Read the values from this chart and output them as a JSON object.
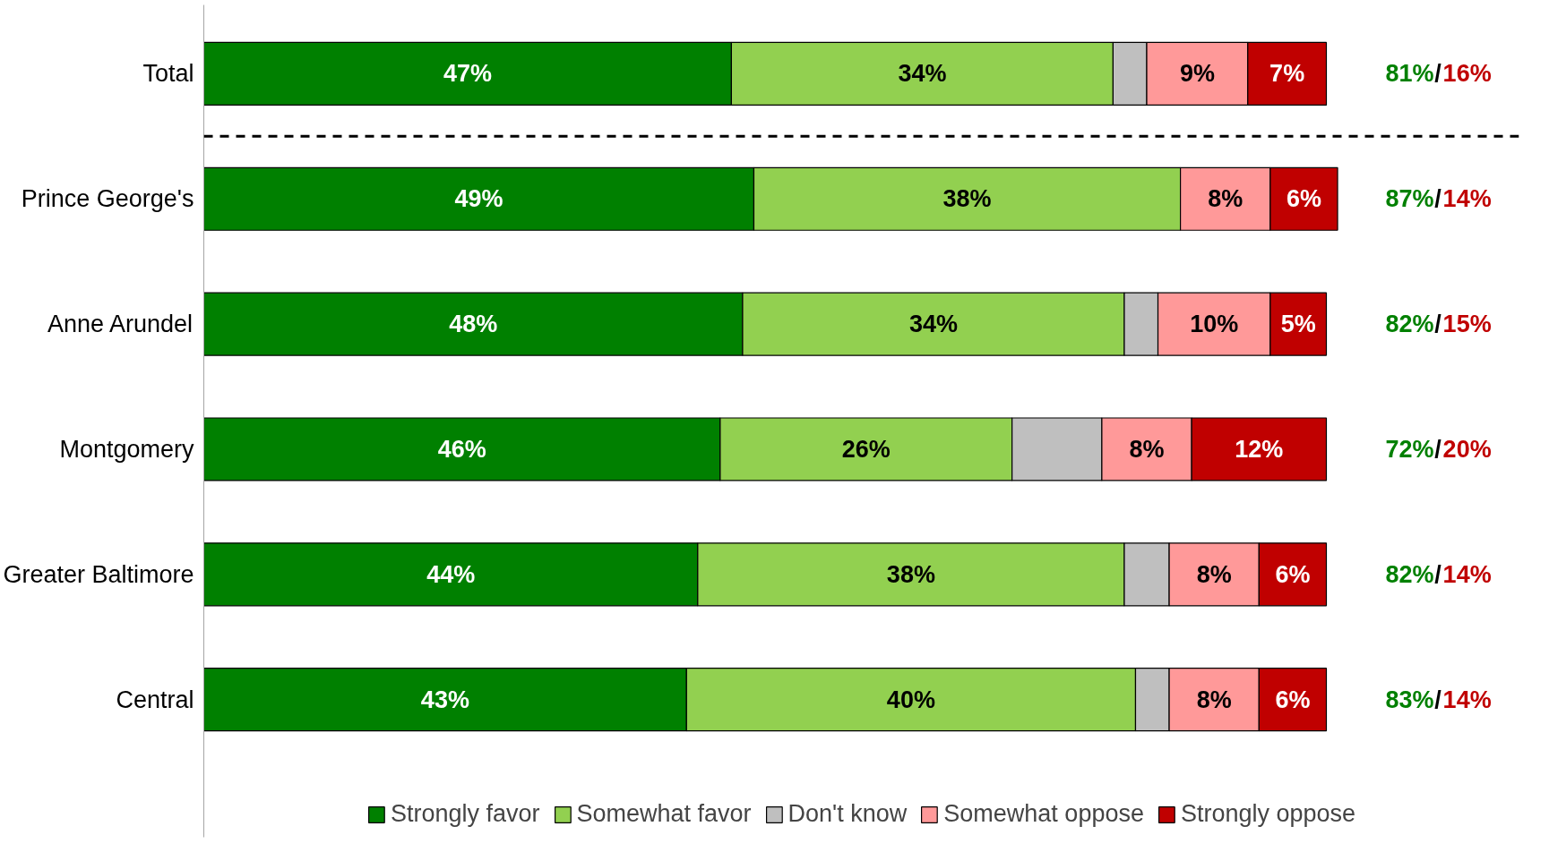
{
  "chart_data": {
    "type": "bar",
    "orientation": "horizontal",
    "stacked": true,
    "categories": [
      "Total",
      "Prince George's",
      "Anne Arundel",
      "Montgomery",
      "Greater Baltimore",
      "Central"
    ],
    "series": [
      {
        "name": "Strongly favor",
        "color": "#008000",
        "values": [
          47,
          49,
          48,
          46,
          44,
          43
        ],
        "value_labels": [
          "47%",
          "49%",
          "48%",
          "46%",
          "44%",
          "43%"
        ]
      },
      {
        "name": "Somewhat favor",
        "color": "#92d050",
        "values": [
          34,
          38,
          34,
          26,
          38,
          40
        ],
        "value_labels": [
          "34%",
          "38%",
          "34%",
          "26%",
          "38%",
          "40%"
        ]
      },
      {
        "name": "Don't know",
        "color": "#bfbfbf",
        "values": [
          3,
          null,
          3,
          8,
          4,
          3
        ],
        "value_labels": [
          null,
          null,
          null,
          null,
          null,
          null
        ]
      },
      {
        "name": "Somewhat oppose",
        "color": "#ff9999",
        "values": [
          9,
          8,
          10,
          8,
          8,
          8
        ],
        "value_labels": [
          "9%",
          "8%",
          "10%",
          "8%",
          "8%",
          "8%"
        ]
      },
      {
        "name": "Strongly oppose",
        "color": "#c00000",
        "values": [
          7,
          6,
          5,
          12,
          6,
          6
        ],
        "value_labels": [
          "7%",
          "6%",
          "5%",
          "12%",
          "6%",
          "6%"
        ]
      }
    ],
    "totals": [
      "81%/16%",
      "87%/14%",
      "82%/15%",
      "72%/20%",
      "82%/14%",
      "83%/14%"
    ],
    "legend": "bottom",
    "tick_labels": "y",
    "grid": false
  }
}
